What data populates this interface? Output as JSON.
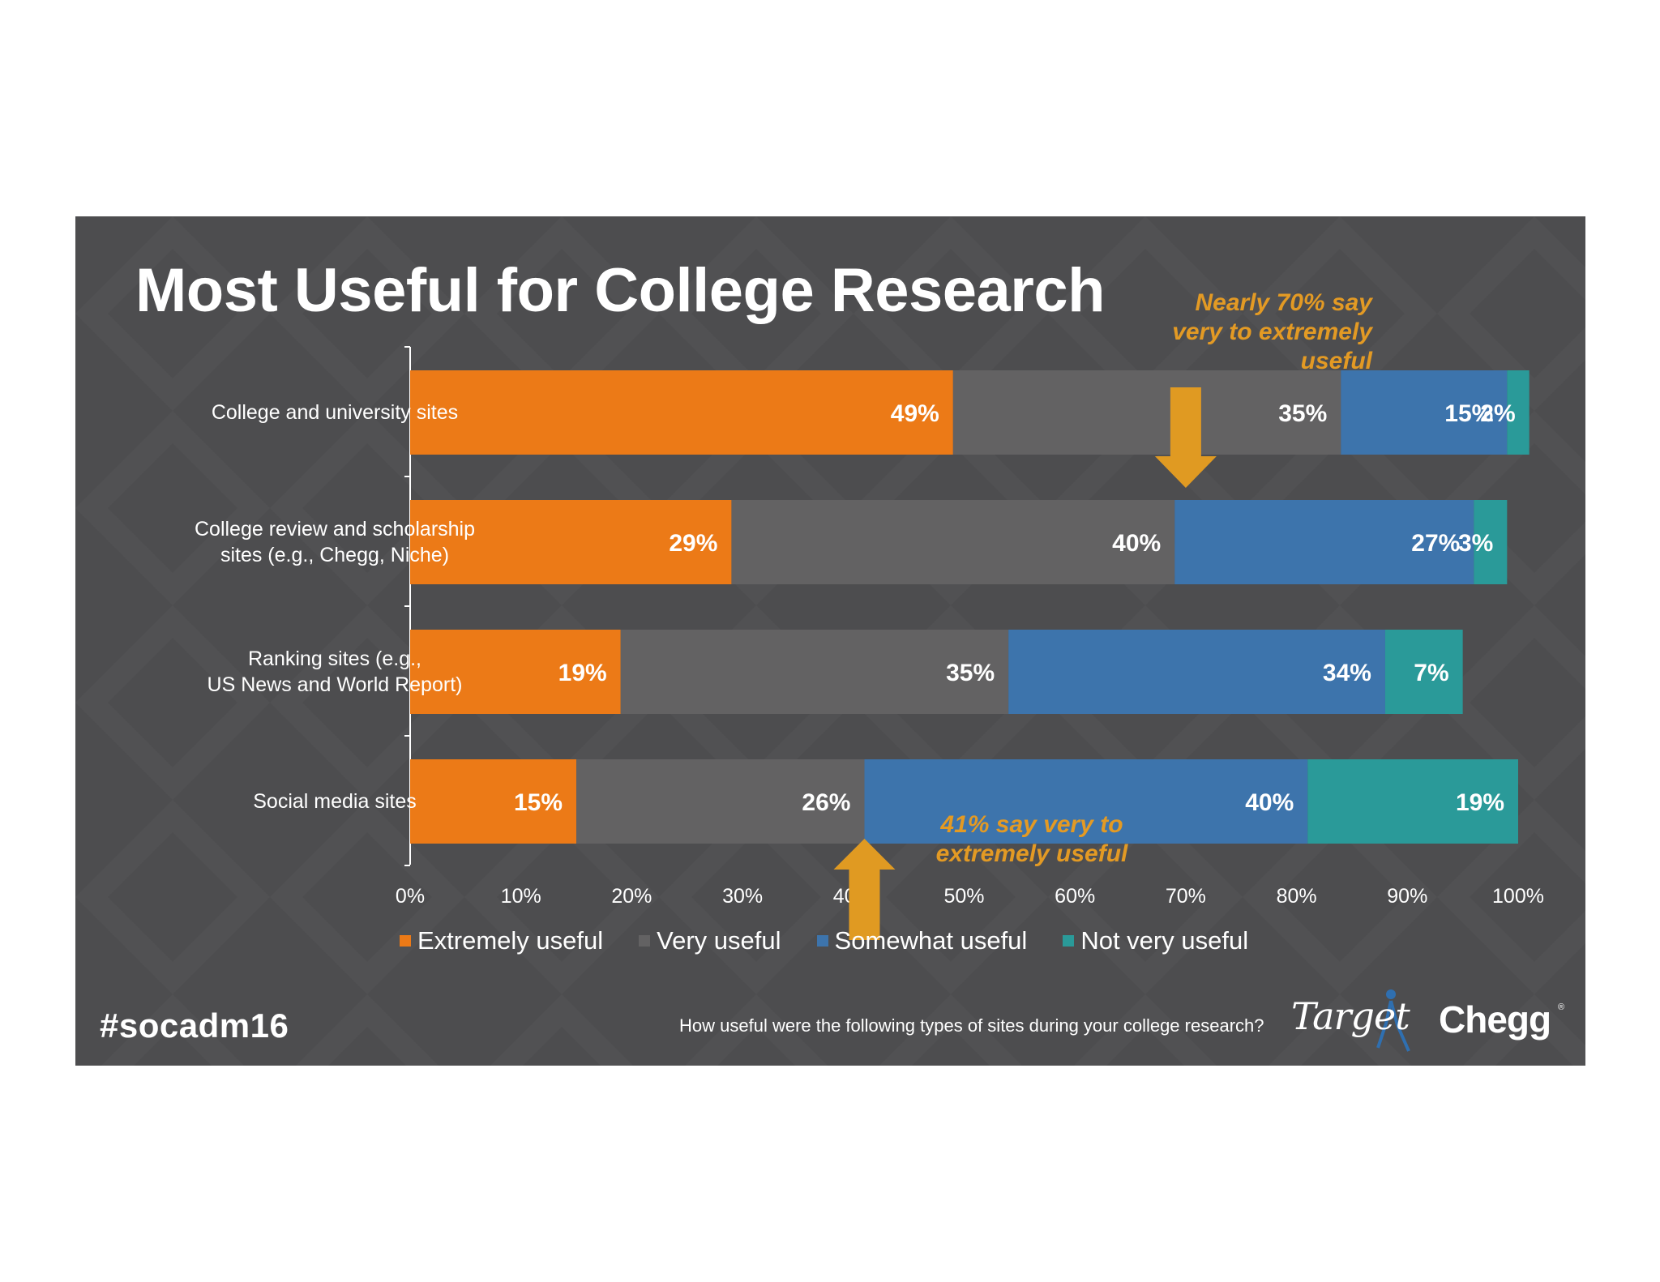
{
  "title": "Most Useful for College Research",
  "hashtag": "#socadm16",
  "question": "How useful were the following types of sites during your college research?",
  "logos": {
    "target": "Target",
    "chegg": "Chegg",
    "chegg_mark": "®"
  },
  "callouts": {
    "top": "Nearly 70% say\nvery to extremely\nuseful",
    "bottom": "41% say very to\nextremely useful"
  },
  "colors": {
    "background": "#4d4d4f",
    "extremely": "#ec7a17",
    "very": "#636263",
    "somewhat": "#3d74ac",
    "not_very": "#2a9a99",
    "callout": "#e39a24",
    "arrow": "#e09a22"
  },
  "chart_data": {
    "type": "bar",
    "orientation": "horizontal",
    "stacked": true,
    "categories": [
      "College and university sites",
      "College review and scholarship\nsites (e.g., Chegg, Niche)",
      "Ranking sites (e.g.,\nUS News and World Report)",
      "Social media sites"
    ],
    "series": [
      {
        "name": "Extremely useful",
        "color": "#ec7a17",
        "values": [
          49,
          29,
          19,
          15
        ],
        "labels": [
          "49%",
          "29%",
          "19%",
          "15%"
        ]
      },
      {
        "name": "Very useful",
        "color": "#636263",
        "values": [
          35,
          40,
          35,
          26
        ],
        "labels": [
          "35%",
          "40%",
          "35%",
          "26%"
        ]
      },
      {
        "name": "Somewhat useful",
        "color": "#3d74ac",
        "values": [
          15,
          27,
          34,
          40
        ],
        "labels": [
          "15%",
          "27%",
          "34%",
          "40%"
        ]
      },
      {
        "name": "Not very useful",
        "color": "#2a9a99",
        "values": [
          2,
          3,
          7,
          19
        ],
        "labels": [
          "2%",
          "3%",
          "7%",
          "19%"
        ]
      }
    ],
    "xticks": [
      "0%",
      "10%",
      "20%",
      "30%",
      "40%",
      "50%",
      "60%",
      "70%",
      "80%",
      "90%",
      "100%"
    ],
    "xlim": [
      0,
      100
    ],
    "grid": false,
    "legend": "bottom",
    "annotations": [
      {
        "text": "Nearly 70% say very to extremely useful",
        "arrow": "down",
        "x": 70,
        "category_index": 0
      },
      {
        "text": "41% say very to extremely useful",
        "arrow": "up",
        "x": 41,
        "category_index": 3
      }
    ]
  }
}
